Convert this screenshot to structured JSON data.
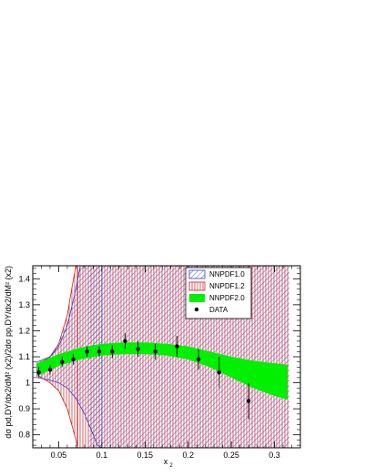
{
  "chart_data": {
    "type": "area",
    "title": "",
    "xlabel": "x",
    "xlabel_sub": "2",
    "ylabel": "dσ^{pd/2σ^{pp,DY}}",
    "ylabel_display": "dσ pd,DY/dx2/dM² (x2)/2dσ pp,DY/dx2/dM² (x2)",
    "xlim": [
      0.02,
      0.33
    ],
    "ylim": [
      0.75,
      1.45
    ],
    "xticks": [
      0.05,
      0.1,
      0.15,
      0.2,
      0.25,
      0.3
    ],
    "xtick_labels": [
      "0.05",
      "0.1",
      "0.15",
      "0.2",
      "0.25",
      "0.3"
    ],
    "yticks": [
      0.8,
      0.9,
      1.0,
      1.1,
      1.2,
      1.3,
      1.4
    ],
    "ytick_labels": [
      "0.8",
      "0.9",
      "1",
      "1.1",
      "1.2",
      "1.3",
      "1.4"
    ],
    "legend_position": "top-right",
    "series": [
      {
        "name": "NNPDF1.0",
        "style": "hatch-blue",
        "color": "#3a3acd",
        "x": [
          0.025,
          0.04,
          0.05,
          0.06,
          0.07,
          0.075,
          0.08,
          0.085,
          0.09,
          0.095,
          0.1
        ],
        "upper": [
          1.08,
          1.1,
          1.14,
          1.22,
          1.36,
          1.45,
          1.45,
          1.45,
          1.45,
          1.45,
          1.45
        ],
        "lower": [
          1.02,
          1.01,
          1.0,
          0.98,
          0.94,
          0.91,
          0.88,
          0.84,
          0.8,
          0.76,
          0.75
        ]
      },
      {
        "name": "NNPDF1.2",
        "style": "hatch-red",
        "color": "#cc2020",
        "x": [
          0.025,
          0.04,
          0.05,
          0.06,
          0.065,
          0.07,
          0.072
        ],
        "upper": [
          1.07,
          1.1,
          1.15,
          1.26,
          1.36,
          1.45,
          1.45
        ],
        "lower": [
          1.03,
          1.0,
          0.97,
          0.9,
          0.84,
          0.78,
          0.75
        ]
      },
      {
        "name": "NNPDF2.0",
        "style": "solid-green",
        "color": "#00f000",
        "x": [
          0.025,
          0.05,
          0.075,
          0.1,
          0.125,
          0.15,
          0.175,
          0.2,
          0.225,
          0.25,
          0.275,
          0.3,
          0.315
        ],
        "upper": [
          1.075,
          1.11,
          1.135,
          1.15,
          1.155,
          1.155,
          1.15,
          1.14,
          1.12,
          1.1,
          1.085,
          1.075,
          1.07
        ],
        "lower": [
          1.025,
          1.065,
          1.09,
          1.105,
          1.11,
          1.11,
          1.105,
          1.09,
          1.06,
          1.02,
          0.98,
          0.95,
          0.935
        ]
      }
    ],
    "wide_band": {
      "note": "NNPDF1.0 and NNPDF1.2 hatching overlap across whole plot range beyond x≈0.07",
      "x_start_blue": 0.085,
      "x_start_red": 0.07
    },
    "data_points": {
      "name": "DATA",
      "x": [
        0.027,
        0.04,
        0.054,
        0.067,
        0.083,
        0.097,
        0.112,
        0.127,
        0.142,
        0.162,
        0.187,
        0.212,
        0.236,
        0.27
      ],
      "y": [
        1.04,
        1.05,
        1.08,
        1.09,
        1.12,
        1.12,
        1.12,
        1.16,
        1.13,
        1.12,
        1.14,
        1.09,
        1.04,
        0.93
      ],
      "err": [
        0.02,
        0.02,
        0.02,
        0.02,
        0.02,
        0.02,
        0.025,
        0.03,
        0.03,
        0.03,
        0.04,
        0.04,
        0.06,
        0.07
      ]
    }
  }
}
